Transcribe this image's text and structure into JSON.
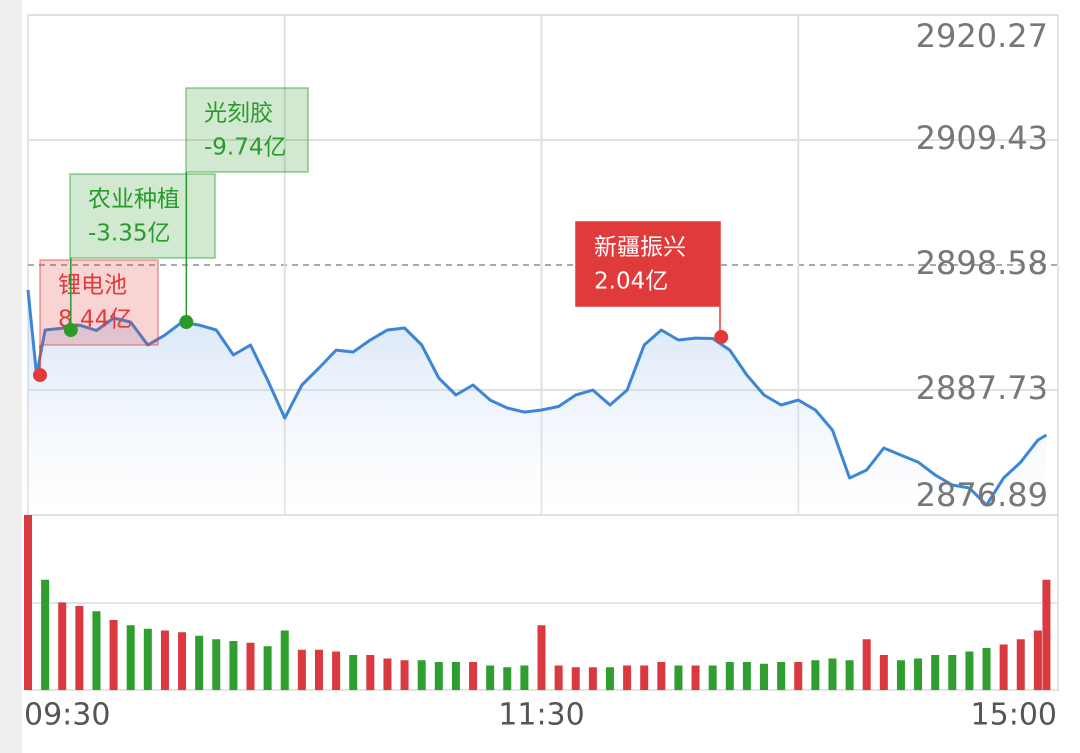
{
  "chart_data": {
    "type": "line",
    "x": [
      0,
      2,
      4,
      8,
      12,
      16,
      20,
      24,
      28,
      32,
      36,
      40,
      44,
      48,
      52,
      56,
      60,
      64,
      68,
      72,
      76,
      80,
      84,
      88,
      92,
      96,
      100,
      104,
      108,
      112,
      116,
      120,
      124,
      128,
      132,
      136,
      140,
      144,
      148,
      152,
      156,
      160,
      164,
      168,
      172,
      176,
      180,
      184,
      188,
      192,
      196,
      200,
      204,
      208,
      212,
      216,
      220,
      224,
      228,
      232,
      236,
      238
    ],
    "series": [
      {
        "color": "#3d86d6",
        "values": [
          2896.41,
          2889.03,
          2892.94,
          2893.1,
          2893.37,
          2892.9,
          2893.98,
          2893.63,
          2891.64,
          2892.5,
          2893.63,
          2893.37,
          2892.94,
          2890.77,
          2891.64,
          2888.6,
          2885.3,
          2888.17,
          2889.64,
          2891.2,
          2891.03,
          2892.07,
          2892.94,
          2893.11,
          2891.64,
          2888.77,
          2887.3,
          2888.17,
          2886.86,
          2886.17,
          2885.82,
          2886.0,
          2886.3,
          2887.3,
          2887.73,
          2886.43,
          2887.73,
          2891.64,
          2892.94,
          2892.07,
          2892.24,
          2892.2,
          2891.2,
          2889.03,
          2887.3,
          2886.43,
          2886.86,
          2886.0,
          2884.26,
          2880.1,
          2880.79,
          2882.7,
          2882.09,
          2881.48,
          2880.36,
          2879.49,
          2879.23,
          2877.75,
          2880.1,
          2881.48,
          2883.39,
          2883.83
        ]
      }
    ],
    "xlim": [
      0,
      240
    ],
    "xticks": [
      {
        "value": 0,
        "label": "09:30"
      },
      {
        "value": 60,
        "label": null
      },
      {
        "value": 120,
        "label": "11:30"
      },
      {
        "value": 180,
        "label": null
      },
      {
        "value": 240,
        "label": "15:00"
      }
    ],
    "ylim": [
      2876.89,
      2920.27
    ],
    "yticks": [
      2876.89,
      2887.73,
      2898.58,
      2909.43,
      2920.27
    ],
    "reference_line": 2898.58,
    "grid": true,
    "volume": {
      "up_color": "#d9393f",
      "down_color": "#2e9e2e",
      "ylim": [
        0,
        100
      ],
      "x": [
        0,
        4,
        8,
        12,
        16,
        20,
        24,
        28,
        32,
        36,
        40,
        44,
        48,
        52,
        56,
        60,
        64,
        68,
        72,
        76,
        80,
        84,
        88,
        92,
        96,
        100,
        104,
        108,
        112,
        116,
        120,
        124,
        128,
        132,
        136,
        140,
        144,
        148,
        152,
        156,
        160,
        164,
        168,
        172,
        176,
        180,
        184,
        188,
        192,
        196,
        200,
        204,
        208,
        212,
        216,
        220,
        224,
        228,
        232,
        236,
        238
      ],
      "values": [
        100,
        63,
        50,
        48,
        45,
        40,
        37,
        35,
        34,
        33,
        31,
        29,
        28,
        27,
        25,
        34,
        23,
        23,
        22,
        20,
        20,
        18,
        17,
        17,
        16,
        16,
        16,
        14,
        13,
        14,
        37,
        14,
        13,
        13,
        13,
        14,
        14,
        16,
        14,
        14,
        14,
        16,
        16,
        15,
        16,
        16,
        17,
        18,
        17,
        29,
        20,
        17,
        18,
        20,
        20,
        22,
        24,
        26,
        29,
        34,
        63
      ]
    },
    "annotations": [
      {
        "label": "锂电池",
        "value": 8.44,
        "value_label": "8.44亿",
        "x": 2.8,
        "y": 2889.03,
        "color": "#e03a3a",
        "style": "light"
      },
      {
        "label": "农业种植",
        "value": -3.35,
        "value_label": "-3.35亿",
        "x": 10,
        "y": 2892.94,
        "color": "#2a9a2a",
        "style": "light"
      },
      {
        "label": "光刻胶",
        "value": -9.74,
        "value_label": "-9.74亿",
        "x": 37,
        "y": 2893.63,
        "color": "#2a9a2a",
        "style": "light"
      },
      {
        "label": "新疆振兴",
        "value": 2.04,
        "value_label": "2.04亿",
        "x": 162,
        "y": 2892.33,
        "color": "#e03a3a",
        "style": "filled"
      }
    ]
  }
}
